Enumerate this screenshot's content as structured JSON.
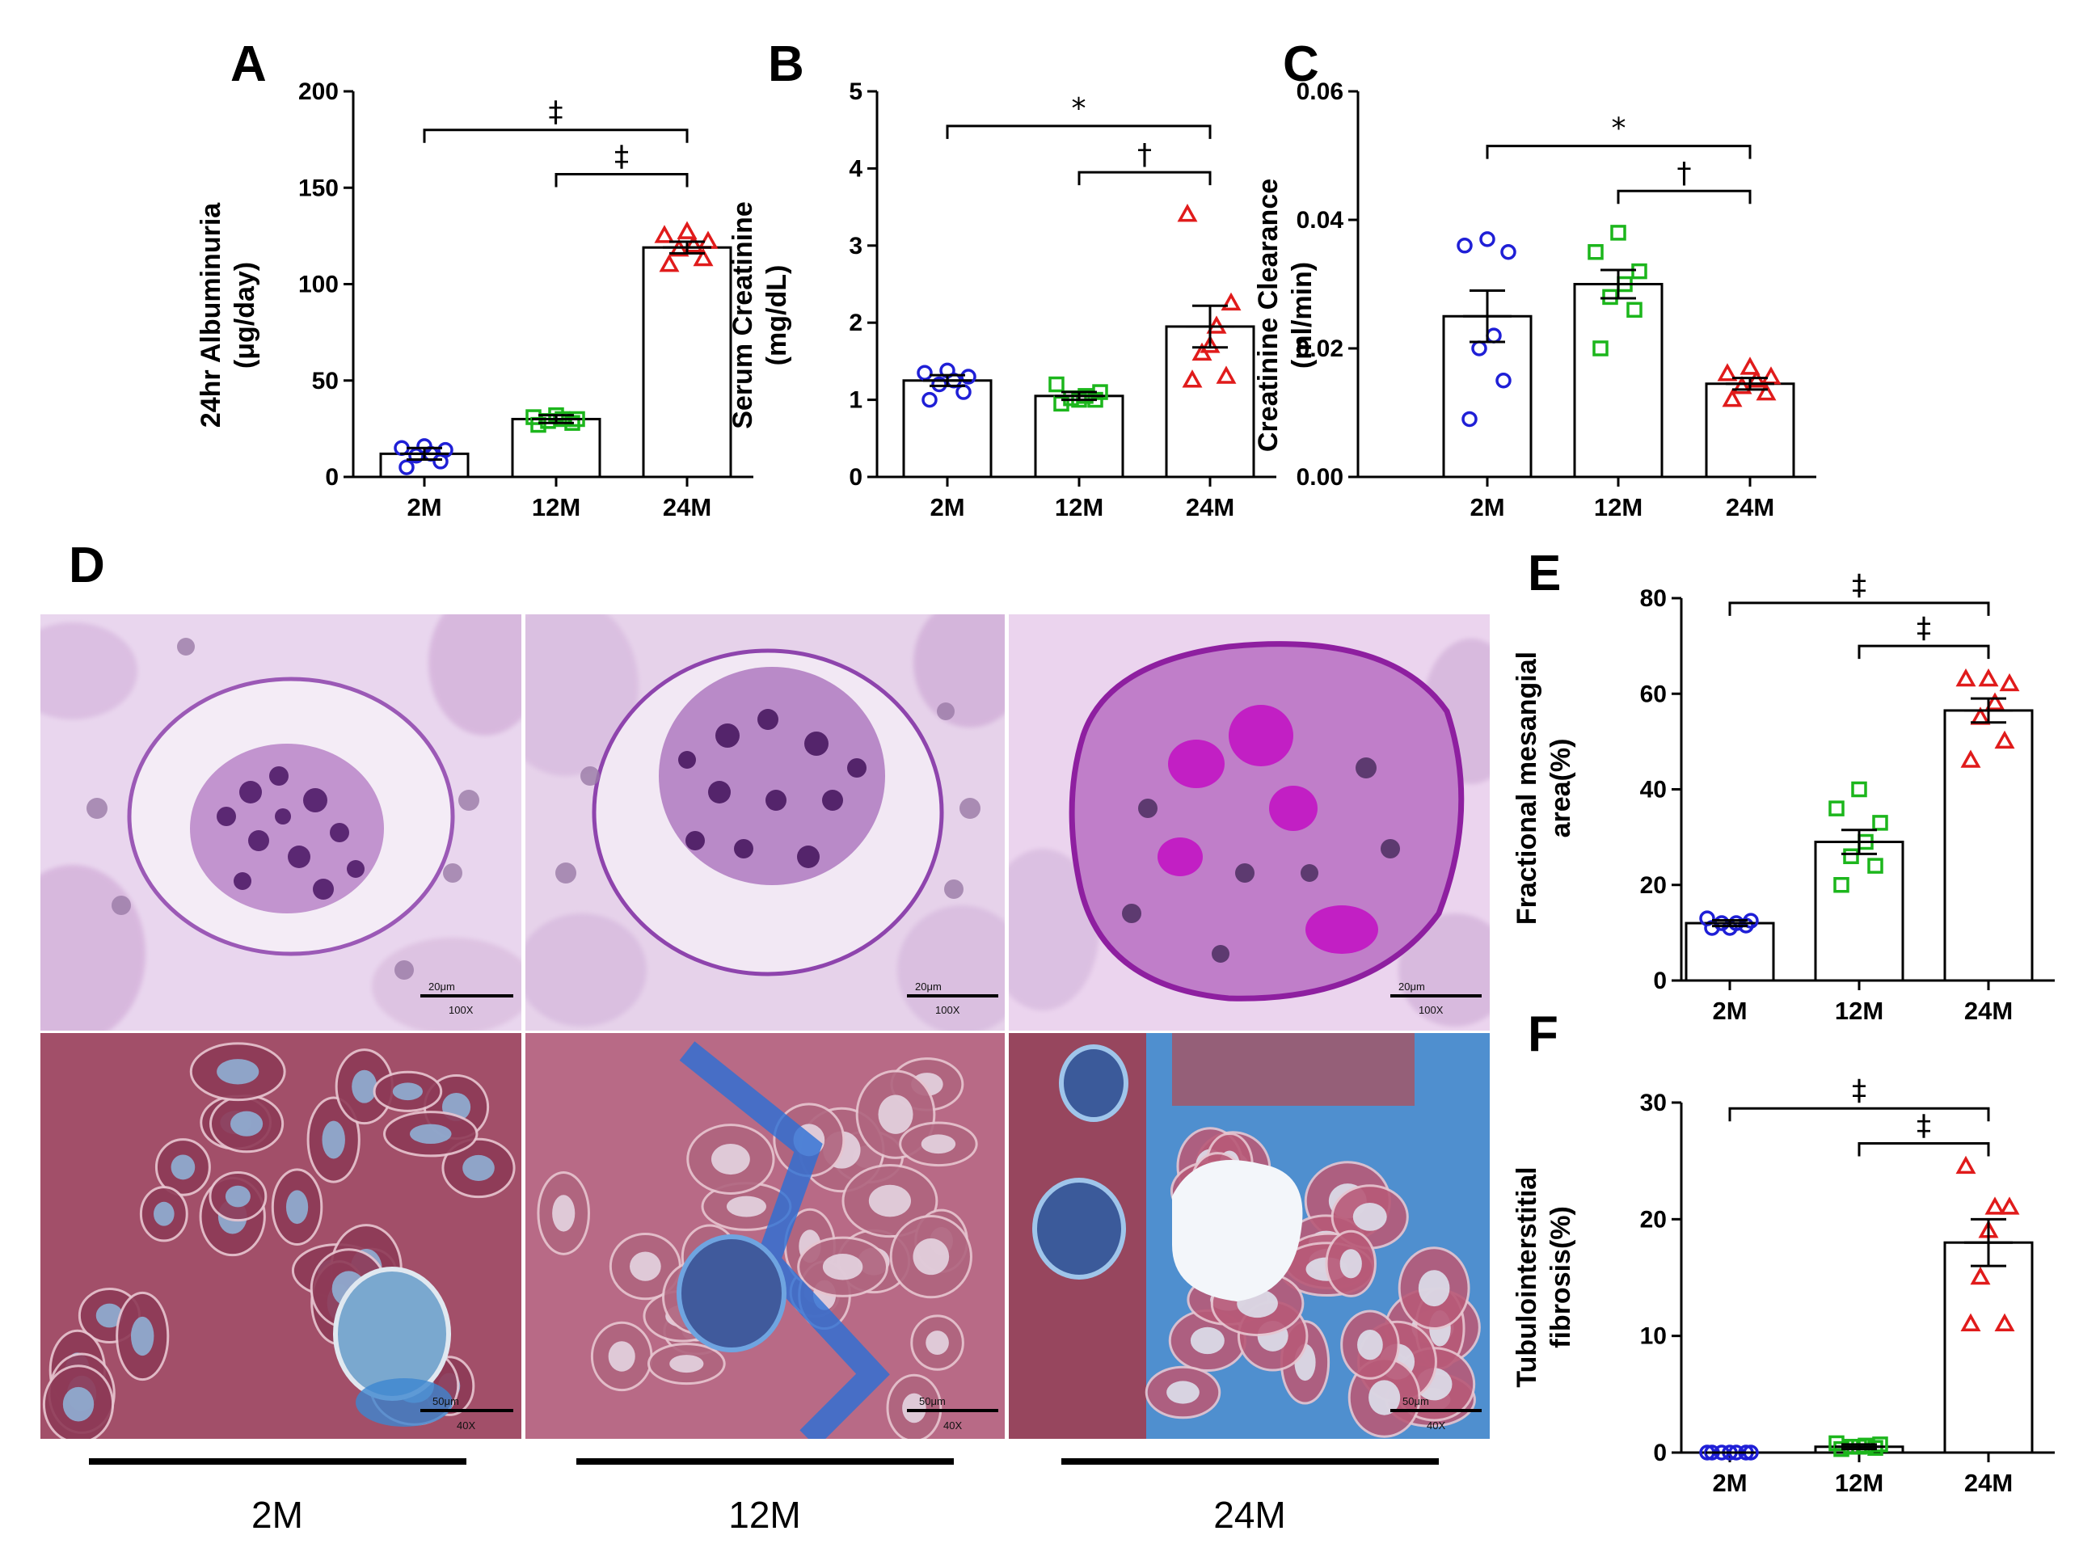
{
  "colors": {
    "2M": "#1f1fd6",
    "12M": "#1cb61c",
    "24M": "#e01b1b",
    "pas_bg": "#ead8ee",
    "pas_cell": "#7a3d93",
    "tri_bg": "#a85266",
    "tri_blue": "#3d86cf"
  },
  "icons": {
    "2M": "circle-marker-icon",
    "12M": "square-marker-icon",
    "24M": "triangle-marker-icon"
  },
  "chart_data": [
    {
      "panel": "A",
      "type": "bar",
      "categories": [
        "2M",
        "12M",
        "24M"
      ],
      "ylabel_line1": "24hr Albuminuria",
      "ylabel_line2": "(μg/day)",
      "ylim": [
        0,
        200
      ],
      "yticks": [
        0,
        50,
        100,
        150,
        200
      ],
      "values": [
        12,
        30,
        119
      ],
      "sem": [
        3,
        2,
        3
      ],
      "points": [
        [
          5,
          8,
          11,
          12,
          14,
          15,
          16
        ],
        [
          27,
          28,
          29,
          30,
          30,
          31,
          32
        ],
        [
          110,
          113,
          118,
          120,
          122,
          125,
          127
        ]
      ],
      "significance": [
        {
          "from": 0,
          "to": 2,
          "label": "‡",
          "y": 180
        },
        {
          "from": 1,
          "to": 2,
          "label": "‡",
          "y": 157
        }
      ]
    },
    {
      "panel": "B",
      "type": "bar",
      "categories": [
        "2M",
        "12M",
        "24M"
      ],
      "ylabel_line1": "Serum Creatinine",
      "ylabel_line2": "(mg/dL)",
      "ylim": [
        0,
        5
      ],
      "yticks": [
        0,
        1,
        2,
        3,
        4,
        5
      ],
      "values": [
        1.25,
        1.05,
        1.95
      ],
      "sem": [
        0.07,
        0.05,
        0.27
      ],
      "points": [
        [
          1.0,
          1.1,
          1.2,
          1.25,
          1.3,
          1.35,
          1.38
        ],
        [
          0.95,
          1.0,
          1.02,
          1.05,
          1.1,
          1.2,
          1.0
        ],
        [
          1.25,
          1.3,
          1.6,
          1.95,
          2.25,
          3.4,
          1.7
        ]
      ],
      "significance": [
        {
          "from": 0,
          "to": 2,
          "label": "*",
          "y": 4.55
        },
        {
          "from": 1,
          "to": 2,
          "label": "†",
          "y": 3.95
        }
      ]
    },
    {
      "panel": "C",
      "type": "bar",
      "categories": [
        "2M",
        "12M",
        "24M"
      ],
      "ylabel_line1": "Creatinine Clearance",
      "ylabel_line2": "(ml/min)",
      "ylim": [
        0,
        0.06
      ],
      "yticks": [
        0.0,
        0.02,
        0.04,
        0.06
      ],
      "ytick_labels": [
        "0.00",
        "0.02",
        "0.04",
        "0.06"
      ],
      "values": [
        0.025,
        0.03,
        0.0145
      ],
      "sem": [
        0.004,
        0.0022,
        0.0009
      ],
      "points": [
        [
          0.009,
          0.015,
          0.02,
          0.022,
          0.035,
          0.036,
          0.037
        ],
        [
          0.02,
          0.026,
          0.028,
          0.03,
          0.032,
          0.035,
          0.038
        ],
        [
          0.012,
          0.013,
          0.014,
          0.015,
          0.0155,
          0.016,
          0.017
        ]
      ],
      "significance": [
        {
          "from": 0,
          "to": 2,
          "label": "*",
          "y": 0.0515
        },
        {
          "from": 1,
          "to": 2,
          "label": "†",
          "y": 0.0445
        }
      ]
    },
    {
      "panel": "E",
      "type": "bar",
      "categories": [
        "2M",
        "12M",
        "24M"
      ],
      "ylabel_line1": "Fractional mesangial",
      "ylabel_line2": "area(%)",
      "ylim": [
        0,
        80
      ],
      "yticks": [
        0,
        20,
        40,
        60,
        80
      ],
      "values": [
        12,
        29,
        56.5
      ],
      "sem": [
        0.6,
        2.5,
        2.5
      ],
      "points": [
        [
          11,
          11.5,
          12,
          12,
          12.5,
          13,
          11
        ],
        [
          20,
          24,
          26,
          29,
          33,
          36,
          40
        ],
        [
          46,
          50,
          55,
          58,
          62,
          63,
          63
        ]
      ],
      "significance": [
        {
          "from": 0,
          "to": 2,
          "label": "‡",
          "y": 79
        },
        {
          "from": 1,
          "to": 2,
          "label": "‡",
          "y": 70
        }
      ]
    },
    {
      "panel": "F",
      "type": "bar",
      "categories": [
        "2M",
        "12M",
        "24M"
      ],
      "ylabel_line1": "Tubulointerstitial",
      "ylabel_line2": "fibrosis(%)",
      "ylim": [
        0,
        30
      ],
      "yticks": [
        0,
        10,
        20,
        30
      ],
      "values": [
        0,
        0.5,
        18
      ],
      "sem": [
        0,
        0.2,
        2
      ],
      "points": [
        [
          0,
          0,
          0,
          0,
          0,
          0,
          0
        ],
        [
          0.3,
          0.4,
          0.5,
          0.6,
          0.7,
          0.8,
          0.5
        ],
        [
          11,
          11,
          15,
          21,
          21,
          24.5,
          19
        ]
      ],
      "significance": [
        {
          "from": 0,
          "to": 2,
          "label": "‡",
          "y": 29.5
        },
        {
          "from": 1,
          "to": 2,
          "label": "‡",
          "y": 26.5
        }
      ]
    }
  ],
  "histology": {
    "panel_letter": "D",
    "groups": [
      "2M",
      "12M",
      "24M"
    ],
    "pas_scale_label": "20μm",
    "pas_magnification": "100X",
    "trichrome_scale_label": "50μm",
    "trichrome_magnification": "40X"
  }
}
